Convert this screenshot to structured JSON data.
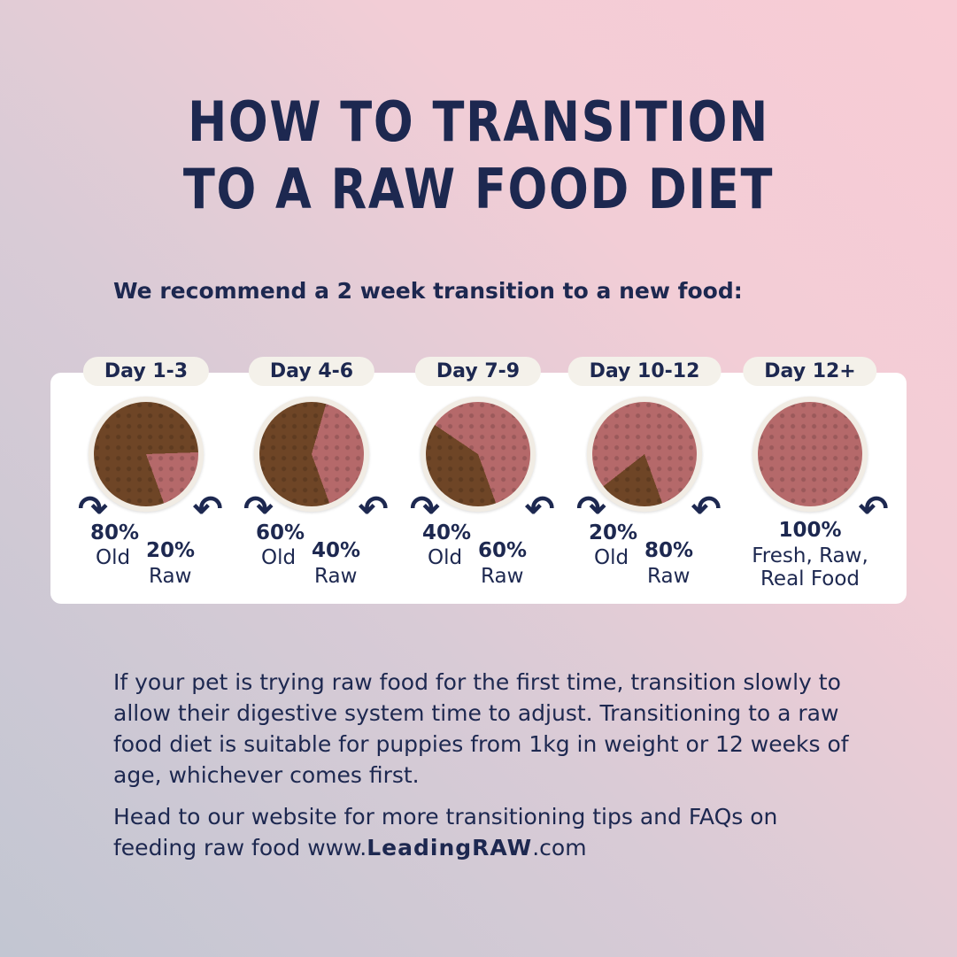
{
  "title": {
    "line1": "HOW TO TRANSITION",
    "line2": "TO A RAW FOOD DIET"
  },
  "subtitle": "We recommend a 2 week transition to a new food:",
  "colors": {
    "text": "#1d2850",
    "kibble": "#6e4526",
    "raw": "#b5696a",
    "card": "#ffffff"
  },
  "stages": [
    {
      "day": "Day 1-3",
      "old_pct": "80%",
      "old_label": "Old",
      "raw_pct": "20%",
      "raw_label": "Raw",
      "old_fraction": 0.8
    },
    {
      "day": "Day 4-6",
      "old_pct": "60%",
      "old_label": "Old",
      "raw_pct": "40%",
      "raw_label": "Raw",
      "old_fraction": 0.6
    },
    {
      "day": "Day 7-9",
      "old_pct": "40%",
      "old_label": "Old",
      "raw_pct": "60%",
      "raw_label": "Raw",
      "old_fraction": 0.4
    },
    {
      "day": "Day 10-12",
      "old_pct": "20%",
      "old_label": "Old",
      "raw_pct": "80%",
      "raw_label": "Raw",
      "old_fraction": 0.2
    },
    {
      "day": "Day 12+",
      "raw_pct": "100%",
      "raw_label": "Fresh, Raw, Real Food",
      "old_fraction": 0
    }
  ],
  "paragraph1": "If your pet is trying raw food for the first time, transition slowly to allow their digestive system time to adjust. Transitioning to a raw food diet is suitable for puppies from 1kg in weight or 12 weeks of age, whichever comes first.",
  "paragraph2_prefix": "Head to our website for more transitioning tips and FAQs on feeding raw food www.",
  "paragraph2_brand": "LeadingRAW",
  "paragraph2_suffix": ".com"
}
